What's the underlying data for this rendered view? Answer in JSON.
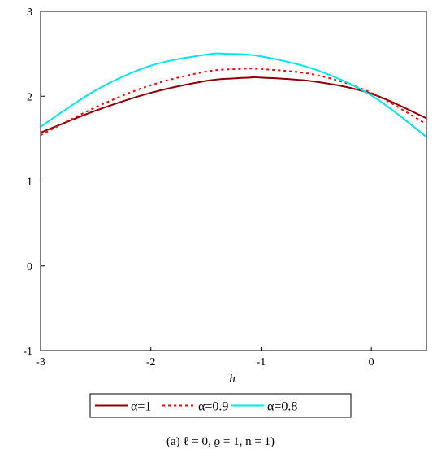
{
  "caption": "(a) ℓ = 0, ϱ = 1, n = 1)",
  "chart_data": {
    "type": "line",
    "title": "",
    "xlabel": "h",
    "ylabel": "",
    "xlim": [
      -3,
      0.5
    ],
    "ylim": [
      -1,
      3
    ],
    "xticks": [
      -3,
      -2,
      -1,
      0
    ],
    "yticks": [
      -1,
      0,
      1,
      2,
      3
    ],
    "grid": false,
    "legend_position": "bottom",
    "series": [
      {
        "name": "α=1",
        "color": "#8b0000",
        "style": "solid",
        "x": [
          -3.0,
          -2.5,
          -2.0,
          -1.5,
          -1.25,
          -1.1,
          -1.0,
          -0.5,
          0.0,
          0.5
        ],
        "y": [
          1.57,
          1.83,
          2.04,
          2.18,
          2.21,
          2.22,
          2.22,
          2.17,
          2.03,
          1.74
        ]
      },
      {
        "name": "α=0.9",
        "color": "#ff0000",
        "style": "dotted",
        "x": [
          -3.0,
          -2.5,
          -2.0,
          -1.5,
          -1.2,
          -1.0,
          -0.5,
          0.0,
          0.5
        ],
        "y": [
          1.54,
          1.87,
          2.13,
          2.29,
          2.32,
          2.32,
          2.25,
          2.04,
          1.67
        ]
      },
      {
        "name": "α=0.8",
        "color": "#00e5ee",
        "style": "solid",
        "x": [
          -3.0,
          -2.5,
          -2.0,
          -1.5,
          -1.3,
          -1.0,
          -0.5,
          0.0,
          0.5
        ],
        "y": [
          1.64,
          2.07,
          2.36,
          2.49,
          2.5,
          2.47,
          2.31,
          2.01,
          1.52
        ]
      }
    ]
  }
}
